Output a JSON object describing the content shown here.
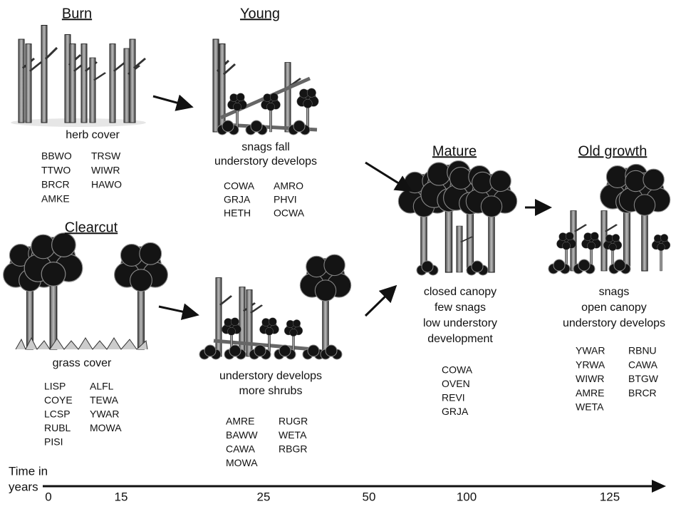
{
  "stages": [
    {
      "title": "Burn",
      "description": [
        "herb cover"
      ],
      "species": [
        [
          "BBWO",
          "TTWO",
          "BRCR",
          "AMKE"
        ],
        [
          "TRSW",
          "WIWR",
          "HAWO"
        ]
      ]
    },
    {
      "title": "Young",
      "description": [
        "snags fall",
        "understory develops"
      ],
      "species": [
        [
          "COWA",
          "GRJA",
          "HETH"
        ],
        [
          "AMRO",
          "PHVI",
          "OCWA"
        ]
      ]
    },
    {
      "title": "Clearcut",
      "description": [
        "grass cover"
      ],
      "species": [
        [
          "LISP",
          "COYE",
          "LCSP",
          "RUBL",
          "PISI"
        ],
        [
          "ALFL",
          "TEWA",
          "YWAR",
          "MOWA"
        ]
      ]
    },
    {
      "description": [
        "understory develops",
        "more shrubs"
      ],
      "species": [
        [
          "AMRE",
          "BAWW",
          "CAWA",
          "MOWA"
        ],
        [
          "RUGR",
          "WETA",
          "RBGR"
        ]
      ]
    },
    {
      "title": "Mature",
      "description": [
        "closed canopy",
        "few snags",
        "low understory",
        "development"
      ],
      "species": [
        [
          "COWA",
          "OVEN",
          "REVI",
          "GRJA"
        ]
      ]
    },
    {
      "title": "Old growth",
      "description": [
        "snags",
        "open canopy",
        "understory develops"
      ],
      "species": [
        [
          "YWAR",
          "YRWA",
          "WIWR",
          "AMRE",
          "WETA"
        ],
        [
          "RBNU",
          "CAWA",
          "BTGW",
          "BRCR"
        ]
      ]
    }
  ],
  "timeline": {
    "label": [
      "Time in",
      "years"
    ],
    "ticks": [
      0,
      15,
      25,
      50,
      100,
      125
    ]
  }
}
